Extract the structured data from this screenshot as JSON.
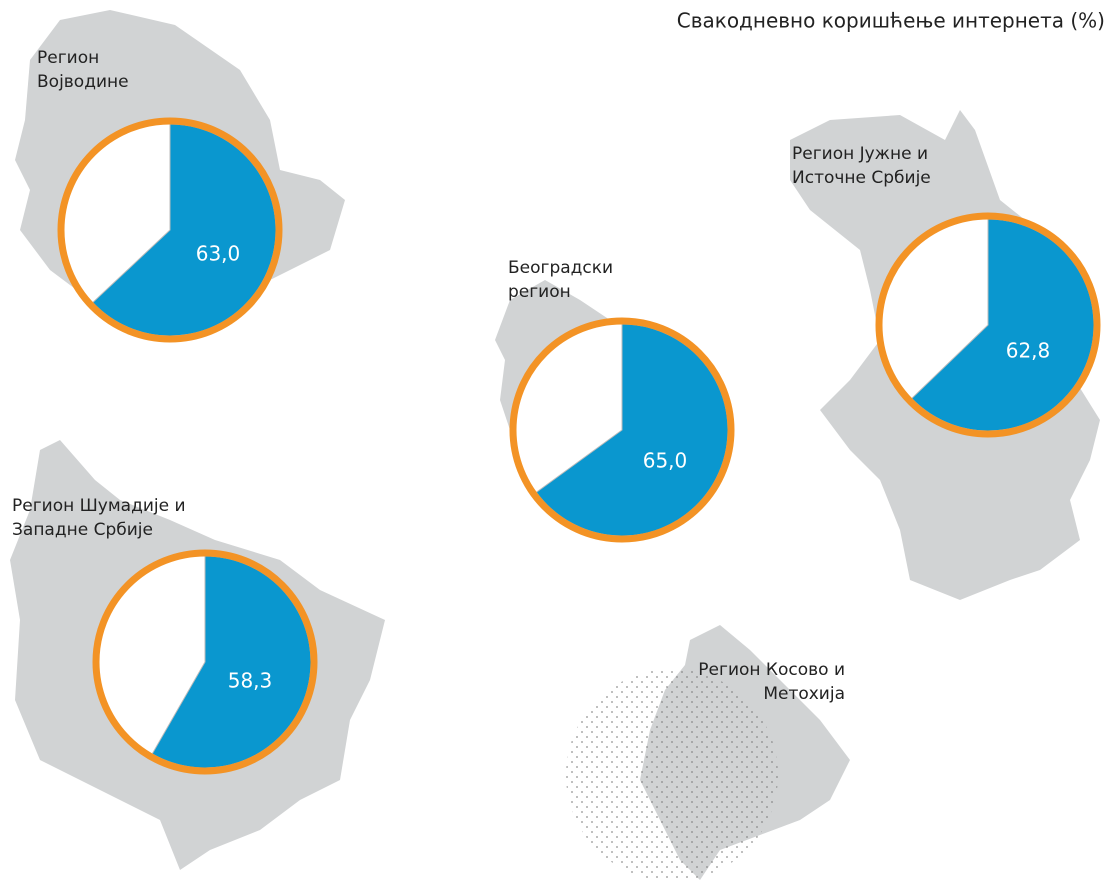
{
  "title": "Свакодневно коришћење интернета (%)",
  "regions": [
    {
      "name": [
        "Регион",
        "Војводине"
      ],
      "value": 63.0,
      "value_label": "63,0"
    },
    {
      "name": [
        "Београдски",
        "регион"
      ],
      "value": 65.0,
      "value_label": "65,0"
    },
    {
      "name": [
        "Регион Јужне и",
        "Источне Србије"
      ],
      "value": 62.8,
      "value_label": "62,8"
    },
    {
      "name": [
        "Регион Шумадије и",
        "Западне Србије"
      ],
      "value": 58.3,
      "value_label": "58,3"
    },
    {
      "name": [
        "Регион Косово и",
        "Метохија"
      ]
    }
  ],
  "colors": {
    "slice": "#0a97cf",
    "ring": "#f39325",
    "rest": "#ffffff"
  },
  "scale_max": 100
}
